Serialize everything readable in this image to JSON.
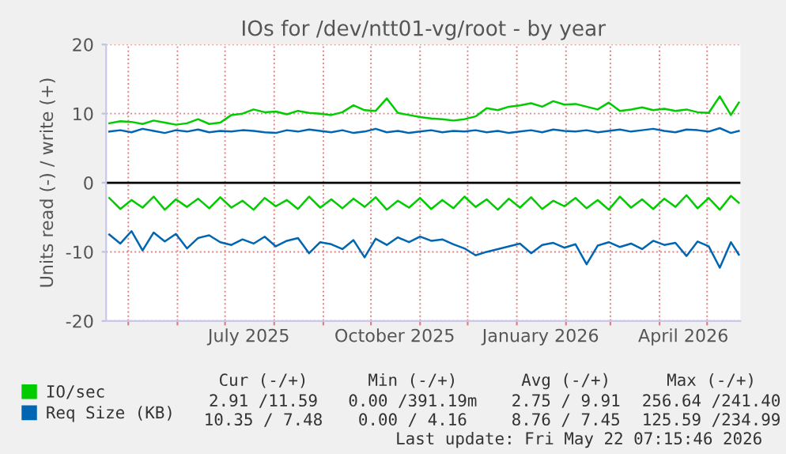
{
  "chart_data": {
    "type": "line",
    "title": "IOs for /dev/ntt01-vg/root - by year",
    "ylabel": "Units read (-) / write (+)",
    "x": [
      "2025-04-19",
      "2025-04-26",
      "2025-05-03",
      "2025-05-10",
      "2025-05-17",
      "2025-05-24",
      "2025-05-31",
      "2025-06-07",
      "2025-06-14",
      "2025-06-21",
      "2025-06-28",
      "2025-07-05",
      "2025-07-12",
      "2025-07-19",
      "2025-07-26",
      "2025-08-02",
      "2025-08-09",
      "2025-08-16",
      "2025-08-23",
      "2025-08-30",
      "2025-09-06",
      "2025-09-13",
      "2025-09-20",
      "2025-09-27",
      "2025-10-04",
      "2025-10-11",
      "2025-10-18",
      "2025-10-25",
      "2025-11-01",
      "2025-11-08",
      "2025-11-15",
      "2025-11-22",
      "2025-11-29",
      "2025-12-06",
      "2025-12-13",
      "2025-12-20",
      "2025-12-27",
      "2026-01-03",
      "2026-01-10",
      "2026-01-17",
      "2026-01-24",
      "2026-01-31",
      "2026-02-07",
      "2026-02-14",
      "2026-02-21",
      "2026-02-28",
      "2026-03-07",
      "2026-03-14",
      "2026-03-21",
      "2026-03-28",
      "2026-04-04",
      "2026-04-11",
      "2026-04-18",
      "2026-04-25",
      "2026-05-02",
      "2026-05-09",
      "2026-05-16",
      "2026-05-21"
    ],
    "series": [
      {
        "name": "IO/sec",
        "color": "#00cc00",
        "values": [
          8.6,
          8.9,
          8.8,
          8.5,
          9.0,
          8.7,
          8.4,
          8.6,
          9.2,
          8.5,
          8.7,
          9.8,
          10.0,
          10.6,
          10.2,
          10.3,
          9.9,
          10.4,
          10.1,
          10.0,
          9.8,
          10.2,
          11.2,
          10.5,
          10.4,
          12.2,
          10.1,
          9.8,
          9.5,
          9.3,
          9.2,
          9.0,
          9.2,
          9.6,
          10.8,
          10.5,
          11.0,
          11.2,
          11.5,
          11.0,
          11.8,
          11.3,
          11.4,
          11.0,
          10.6,
          11.6,
          10.4,
          10.6,
          10.9,
          10.5,
          10.7,
          10.4,
          10.6,
          10.2,
          10.1,
          12.5,
          9.8,
          11.6
        ]
      },
      {
        "color": "#00cc00",
        "values": [
          -2.2,
          -3.8,
          -2.5,
          -3.6,
          -2.0,
          -3.9,
          -2.4,
          -3.5,
          -2.3,
          -3.7,
          -2.1,
          -3.6,
          -2.6,
          -3.9,
          -2.2,
          -3.4,
          -2.5,
          -3.8,
          -2.0,
          -3.6,
          -2.4,
          -3.7,
          -2.3,
          -3.5,
          -2.1,
          -3.9,
          -2.6,
          -3.6,
          -2.2,
          -3.8,
          -2.5,
          -3.7,
          -2.0,
          -3.5,
          -2.4,
          -3.9,
          -2.3,
          -3.6,
          -2.1,
          -3.8,
          -2.6,
          -3.4,
          -2.2,
          -3.7,
          -2.5,
          -3.9,
          -2.0,
          -3.6,
          -2.4,
          -3.8,
          -2.3,
          -3.5,
          -1.8,
          -3.7,
          -2.2,
          -3.9,
          -1.9,
          -2.9
        ]
      },
      {
        "name": "Req Size (KB)",
        "color": "#0066b3",
        "values": [
          7.4,
          7.6,
          7.3,
          7.8,
          7.5,
          7.2,
          7.6,
          7.4,
          7.7,
          7.3,
          7.5,
          7.4,
          7.6,
          7.5,
          7.3,
          7.2,
          7.6,
          7.4,
          7.7,
          7.5,
          7.3,
          7.6,
          7.2,
          7.4,
          7.8,
          7.3,
          7.5,
          7.2,
          7.4,
          7.6,
          7.3,
          7.5,
          7.4,
          7.6,
          7.3,
          7.5,
          7.2,
          7.4,
          7.6,
          7.3,
          7.7,
          7.5,
          7.4,
          7.6,
          7.3,
          7.5,
          7.7,
          7.4,
          7.6,
          7.8,
          7.5,
          7.3,
          7.7,
          7.6,
          7.4,
          7.9,
          7.2,
          7.5
        ]
      },
      {
        "color": "#0066b3",
        "values": [
          -7.5,
          -8.8,
          -7.0,
          -9.8,
          -7.2,
          -8.5,
          -7.4,
          -9.5,
          -8.0,
          -7.6,
          -8.6,
          -9.0,
          -8.2,
          -8.8,
          -7.8,
          -9.2,
          -8.4,
          -8.0,
          -10.2,
          -8.6,
          -8.9,
          -9.6,
          -8.3,
          -10.8,
          -8.1,
          -9.0,
          -7.9,
          -8.6,
          -7.8,
          -8.4,
          -8.2,
          -8.9,
          -9.5,
          -10.5,
          -10.0,
          -9.6,
          -9.2,
          -8.8,
          -10.2,
          -9.0,
          -8.7,
          -9.4,
          -8.9,
          -11.8,
          -9.1,
          -8.6,
          -9.3,
          -8.8,
          -9.6,
          -8.4,
          -9.0,
          -8.7,
          -10.6,
          -8.5,
          -9.2,
          -12.3,
          -8.6,
          -10.4
        ]
      }
    ],
    "xlim": [
      "2025-04-17",
      "2026-05-22"
    ],
    "xticks": [
      {
        "value": "2025-05-01",
        "label": null
      },
      {
        "value": "2025-06-01",
        "label": null
      },
      {
        "value": "2025-07-01",
        "label": null
      },
      {
        "value": "2025-07-16",
        "label": "July 2025"
      },
      {
        "value": "2025-08-01",
        "label": null
      },
      {
        "value": "2025-09-01",
        "label": null
      },
      {
        "value": "2025-10-01",
        "label": null
      },
      {
        "value": "2025-10-16",
        "label": "October 2025"
      },
      {
        "value": "2025-11-01",
        "label": null
      },
      {
        "value": "2025-12-01",
        "label": null
      },
      {
        "value": "2026-01-01",
        "label": null
      },
      {
        "value": "2026-01-16",
        "label": "January 2026"
      },
      {
        "value": "2026-02-01",
        "label": null
      },
      {
        "value": "2026-03-01",
        "label": null
      },
      {
        "value": "2026-04-01",
        "label": null
      },
      {
        "value": "2026-04-16",
        "label": "April 2026"
      },
      {
        "value": "2026-05-01",
        "label": null
      }
    ],
    "ylim": [
      -20,
      20
    ],
    "yticks": [
      -20,
      -10,
      0,
      10,
      20
    ],
    "ref_lines": [
      {
        "axis": "y",
        "value": 0,
        "color": "#000000"
      }
    ],
    "grid": true,
    "legend": "bottom",
    "annotations": [
      "Cur (-/+)",
      "Min (-/+)",
      "Avg (-/+)",
      "Max (-/+)",
      "2.91 /11.59",
      "0.00 /391.19m",
      "2.75 / 9.91",
      "256.64 /241.40",
      "10.35 / 7.48",
      "0.00 / 4.16",
      "8.76 / 7.45",
      "125.59 /234.99",
      "Last update: Fri May 22 07:15:46 2026"
    ]
  }
}
